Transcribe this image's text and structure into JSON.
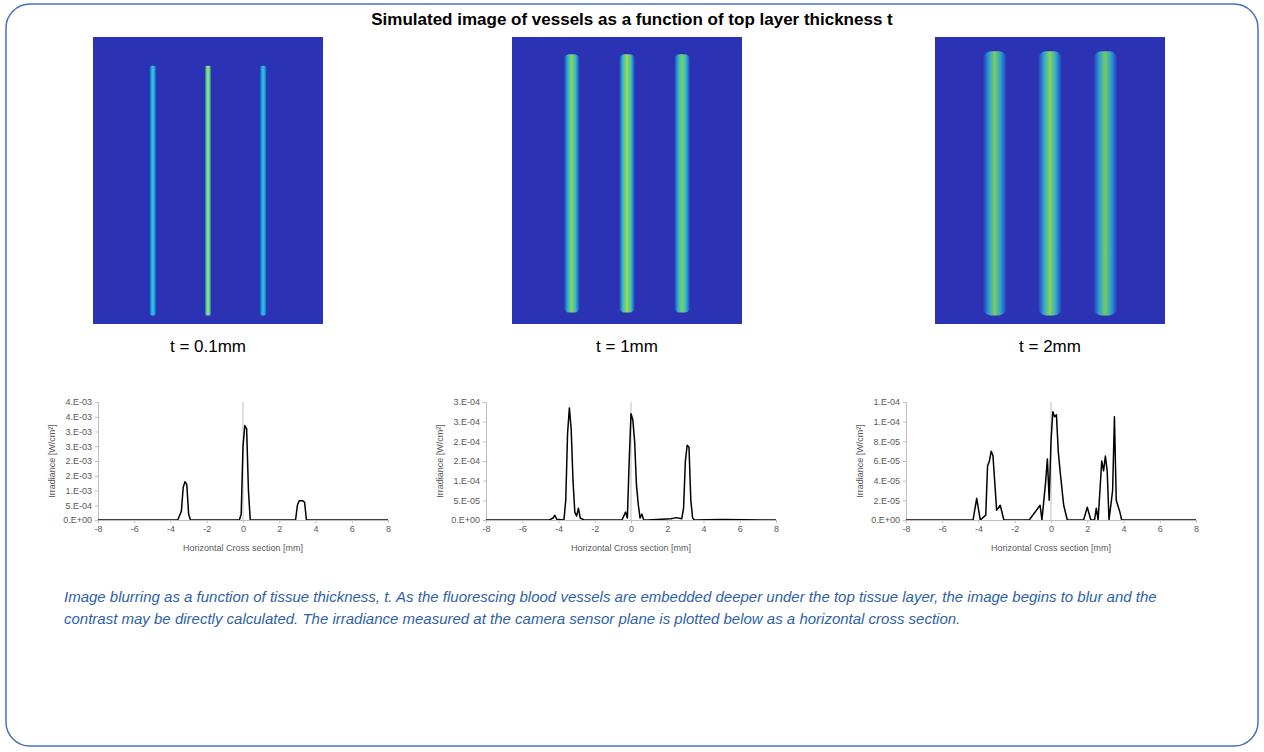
{
  "title": "Simulated image of vessels as a function of top layer thickness t",
  "image_labels": [
    "t = 0.1mm",
    "t = 1mm",
    "t = 2mm"
  ],
  "caption": "Image blurring as a function of tissue thickness, t. As the fluorescing blood vessels are embedded deeper under the top tissue layer, the image begins to blur and the contrast may be directly calculated. The irradiance measured at the camera sensor plane is plotted below as a horizontal cross section.",
  "chart_data": [
    {
      "type": "line",
      "color": "#000000",
      "grid": false,
      "x_label": "Horizontal Cross section [mm]",
      "y_label": "Irradiance [W/cm²]",
      "x": [
        -8,
        -3.6,
        -3.4,
        -3.3,
        -3.2,
        -3.1,
        -3.0,
        -2.9,
        -0.2,
        -0.1,
        0,
        0.1,
        0.2,
        0.3,
        0.4,
        2.9,
        3.0,
        3.1,
        3.2,
        3.3,
        3.4,
        3.5,
        8
      ],
      "values": [
        0,
        0,
        0.0003,
        0.0011,
        0.0013,
        0.0012,
        0.0002,
        0,
        0,
        0.0002,
        0.0025,
        0.0032,
        0.0031,
        0.001,
        0,
        0,
        0.0005,
        0.00065,
        0.00065,
        0.00065,
        0.0006,
        0,
        0
      ],
      "xlim": [
        -8,
        8
      ],
      "xticks": [
        -8,
        -6,
        -4,
        -2,
        0,
        2,
        4,
        6,
        8
      ],
      "ylim": [
        0,
        0.004
      ],
      "yticks": [
        {
          "value": 0,
          "label": "0.E+00"
        },
        {
          "value": 0.0005,
          "label": "5.E-04"
        },
        {
          "value": 0.001,
          "label": "1.E-03"
        },
        {
          "value": 0.0015,
          "label": "2.E-03"
        },
        {
          "value": 0.002,
          "label": "2.E-03"
        },
        {
          "value": 0.0025,
          "label": "3.E-03"
        },
        {
          "value": 0.003,
          "label": "3.E-03"
        },
        {
          "value": 0.0035,
          "label": "4.E-03"
        },
        {
          "value": 0.004,
          "label": "4.E-03"
        }
      ]
    },
    {
      "type": "line",
      "color": "#000000",
      "grid": false,
      "x_label": "Horizontal Cross section [mm]",
      "y_label": "Irradiance [W/cm²]",
      "x": [
        -8,
        -4.5,
        -4.3,
        -4.2,
        -4.1,
        -3.7,
        -3.6,
        -3.5,
        -3.4,
        -3.3,
        -3.2,
        -3.1,
        -3.0,
        -2.9,
        -2.8,
        -2.6,
        -0.5,
        -0.3,
        -0.2,
        -0.1,
        0,
        0.1,
        0.2,
        0.3,
        0.4,
        0.5,
        0.6,
        0.7,
        0.9,
        2.2,
        2.5,
        2.8,
        2.9,
        3.0,
        3.1,
        3.2,
        3.3,
        3.4,
        3.5,
        5,
        8
      ],
      "values": [
        0,
        0,
        5e-06,
        1.2e-05,
        2e-06,
        0,
        5e-05,
        0.00022,
        0.000285,
        0.00023,
        0.0001,
        2e-05,
        1e-05,
        3e-05,
        5e-06,
        0,
        0,
        2e-05,
        5e-06,
        0.00015,
        0.00027,
        0.000255,
        0.0002,
        9e-05,
        4e-05,
        5e-06,
        1.5e-05,
        0,
        0,
        3e-06,
        6e-06,
        3e-06,
        3e-05,
        0.00015,
        0.00019,
        0.000185,
        5e-05,
        5e-06,
        0,
        1e-06,
        0
      ],
      "xlim": [
        -8,
        8
      ],
      "xticks": [
        -8,
        -6,
        -4,
        -2,
        0,
        2,
        4,
        6,
        8
      ],
      "ylim": [
        0,
        0.0003
      ],
      "yticks": [
        {
          "value": 0,
          "label": "0.E+00"
        },
        {
          "value": 5e-05,
          "label": "5.E-05"
        },
        {
          "value": 0.0001,
          "label": "1.E-04"
        },
        {
          "value": 0.00015,
          "label": "2.E-04"
        },
        {
          "value": 0.0002,
          "label": "2.E-04"
        },
        {
          "value": 0.00025,
          "label": "3.E-04"
        },
        {
          "value": 0.0003,
          "label": "3.E-04"
        }
      ]
    },
    {
      "type": "line",
      "color": "#000000",
      "grid": false,
      "x_label": "Horizontal Cross section [mm]",
      "y_label": "Irradiance [W/cm²]",
      "x": [
        -8,
        -6,
        -4.3,
        -4.1,
        -3.9,
        -3.6,
        -3.5,
        -3.4,
        -3.3,
        -3.2,
        -3.0,
        -2.8,
        -2.6,
        -1.2,
        -0.6,
        -0.5,
        -0.3,
        -0.2,
        -0.1,
        0,
        0.1,
        0.2,
        0.3,
        0.4,
        0.5,
        0.7,
        0.9,
        1.8,
        2.0,
        2.2,
        2.4,
        2.5,
        2.6,
        2.8,
        2.9,
        3.0,
        3.1,
        3.2,
        3.4,
        3.5,
        3.6,
        3.8,
        3.9,
        4.2,
        8
      ],
      "values": [
        0,
        0,
        0,
        2.2e-05,
        0,
        5e-06,
        5.5e-05,
        6e-05,
        7e-05,
        6.5e-05,
        1e-05,
        1.5e-05,
        0,
        0,
        1.5e-05,
        0,
        3.8e-05,
        6.2e-05,
        2e-05,
        8e-05,
        0.00011,
        0.000105,
        0.000107,
        7e-05,
        5e-05,
        1.5e-05,
        0,
        0,
        1.3e-05,
        0,
        0,
        1.2e-05,
        0,
        6e-05,
        5e-05,
        6.5e-05,
        5e-05,
        0,
        3e-05,
        0.000105,
        2e-05,
        8e-06,
        0,
        0,
        0
      ],
      "xlim": [
        -8,
        8
      ],
      "xticks": [
        -8,
        -6,
        -4,
        -2,
        0,
        2,
        4,
        6,
        8
      ],
      "ylim": [
        0,
        0.00012
      ],
      "yticks": [
        {
          "value": 0,
          "label": "0.E+00"
        },
        {
          "value": 2e-05,
          "label": "2.E-05"
        },
        {
          "value": 4e-05,
          "label": "4.E-05"
        },
        {
          "value": 6e-05,
          "label": "6.E-05"
        },
        {
          "value": 8e-05,
          "label": "8.E-05"
        },
        {
          "value": 0.0001,
          "label": "1.E-04"
        },
        {
          "value": 0.00012,
          "label": "1.E-04"
        }
      ]
    }
  ]
}
